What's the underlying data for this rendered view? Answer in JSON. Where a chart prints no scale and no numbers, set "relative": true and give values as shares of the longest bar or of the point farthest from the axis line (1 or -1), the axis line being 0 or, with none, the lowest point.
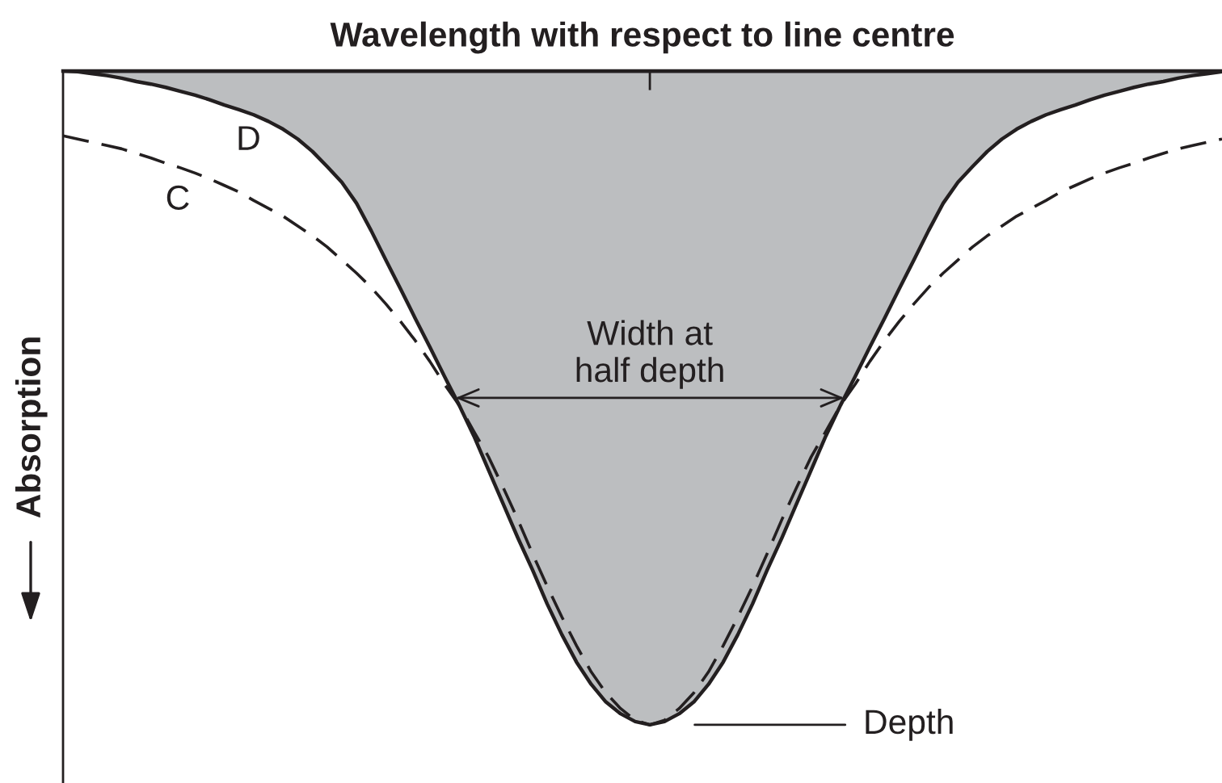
{
  "chart_data": {
    "type": "line",
    "relative": true,
    "tick_labels": false,
    "xlabel": "Wavelength with respect to line centre",
    "ylabel": "Absorption",
    "categories": [
      null,
      null,
      null,
      null,
      null,
      null,
      null,
      null,
      null,
      null,
      null,
      null,
      null,
      null,
      null,
      null,
      null,
      null,
      null,
      null,
      null,
      null,
      null,
      null,
      null,
      null,
      null,
      null,
      null,
      null,
      null,
      null,
      null,
      null,
      null,
      null,
      null,
      null,
      null,
      null,
      null,
      null,
      null,
      null,
      null,
      null,
      null,
      null,
      null,
      null,
      null,
      null,
      null,
      null,
      null,
      null,
      null,
      null,
      null,
      null,
      null,
      null,
      null,
      null,
      null,
      null,
      null,
      null,
      null,
      null,
      null,
      null,
      null,
      null,
      null,
      null,
      null,
      null,
      null,
      null
    ],
    "series": [
      {
        "name": "D",
        "type": "area",
        "color": "#bcbec0",
        "values": [
          0,
          -0.001,
          -0.004,
          -0.007,
          -0.011,
          -0.016,
          -0.02,
          -0.025,
          -0.031,
          -0.037,
          -0.044,
          -0.052,
          -0.059,
          -0.067,
          -0.077,
          -0.089,
          -0.104,
          -0.123,
          -0.146,
          -0.17,
          -0.202,
          -0.244,
          -0.289,
          -0.333,
          -0.378,
          -0.422,
          -0.467,
          -0.511,
          -0.558,
          -0.61,
          -0.662,
          -0.714,
          -0.763,
          -0.815,
          -0.862,
          -0.904,
          -0.938,
          -0.965,
          -0.983,
          -0.995,
          -1.0,
          -0.995,
          -0.983,
          -0.965,
          -0.938,
          -0.904,
          -0.862,
          -0.815,
          -0.763,
          -0.714,
          -0.662,
          -0.61,
          -0.558,
          -0.511,
          -0.467,
          -0.422,
          -0.378,
          -0.333,
          -0.289,
          -0.244,
          -0.202,
          -0.17,
          -0.146,
          -0.123,
          -0.104,
          -0.089,
          -0.077,
          -0.067,
          -0.059,
          -0.052,
          -0.044,
          -0.037,
          -0.031,
          -0.025,
          -0.02,
          -0.016,
          -0.011,
          -0.007,
          -0.004,
          -0.001
        ]
      },
      {
        "name": "C",
        "color": "#231f20",
        "line_style": "dashed",
        "values": [
          -0.099,
          -0.104,
          -0.109,
          -0.114,
          -0.119,
          -0.126,
          -0.133,
          -0.141,
          -0.148,
          -0.156,
          -0.165,
          -0.175,
          -0.185,
          -0.198,
          -0.21,
          -0.222,
          -0.237,
          -0.252,
          -0.269,
          -0.289,
          -0.309,
          -0.331,
          -0.356,
          -0.383,
          -0.412,
          -0.444,
          -0.479,
          -0.511,
          -0.551,
          -0.59,
          -0.637,
          -0.686,
          -0.738,
          -0.788,
          -0.835,
          -0.879,
          -0.919,
          -0.951,
          -0.975,
          -0.993,
          -1.0,
          -0.993,
          -0.975,
          -0.951,
          -0.919,
          -0.879,
          -0.835,
          -0.788,
          -0.738,
          -0.686,
          -0.637,
          -0.59,
          -0.551,
          -0.511,
          -0.479,
          -0.444,
          -0.412,
          -0.383,
          -0.356,
          -0.331,
          -0.309,
          -0.289,
          -0.269,
          -0.252,
          -0.237,
          -0.222,
          -0.21,
          -0.198,
          -0.185,
          -0.175,
          -0.165,
          -0.156,
          -0.148,
          -0.141,
          -0.133,
          -0.126,
          -0.119,
          -0.114,
          -0.109,
          -0.104
        ]
      }
    ],
    "annotations": [
      {
        "text": "Width at\nhalf depth",
        "y": -0.5
      },
      "Depth"
    ]
  }
}
